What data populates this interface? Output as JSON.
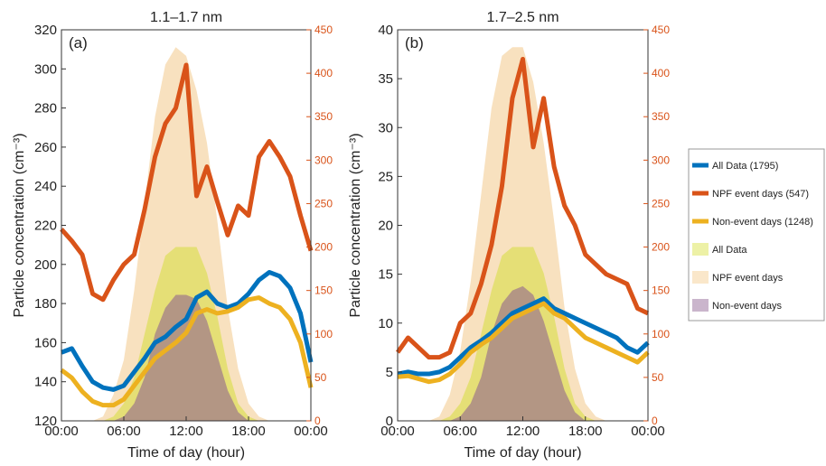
{
  "chart_data": [
    {
      "type": "line",
      "title": "1.1–1.7 nm",
      "annotation": "(a)",
      "xlabel": "Time of day (hour)",
      "ylabel": "Particle concentration (cm⁻³)",
      "x": [
        0,
        1,
        2,
        3,
        4,
        5,
        6,
        7,
        8,
        9,
        10,
        11,
        12,
        13,
        14,
        15,
        16,
        17,
        18,
        19,
        20,
        21,
        22,
        23,
        24
      ],
      "xlim": [
        0,
        24
      ],
      "xticks": [
        {
          "value": 0,
          "label": "00:00"
        },
        {
          "value": 6,
          "label": "06:00"
        },
        {
          "value": 12,
          "label": "12:00"
        },
        {
          "value": 18,
          "label": "18:00"
        },
        {
          "value": 24,
          "label": "00:00"
        }
      ],
      "ylim": [
        120,
        320
      ],
      "yticks": [
        120,
        140,
        160,
        180,
        200,
        220,
        240,
        260,
        280,
        300,
        320
      ],
      "y2lim": [
        0,
        450
      ],
      "y2ticks": [
        0,
        50,
        100,
        150,
        200,
        250,
        300,
        350,
        400,
        450
      ],
      "series": [
        {
          "name": "NPF event days",
          "type": "area",
          "axis": "y2",
          "color": "#f3c98a",
          "values": [
            0,
            0,
            0,
            0,
            5,
            30,
            70,
            150,
            250,
            350,
            410,
            430,
            420,
            380,
            320,
            230,
            130,
            60,
            20,
            5,
            0,
            0,
            0,
            0,
            0
          ]
        },
        {
          "name": "All Data",
          "type": "area",
          "axis": "y2",
          "color": "#d6df3a",
          "values": [
            0,
            0,
            0,
            0,
            0,
            5,
            20,
            50,
            100,
            150,
            190,
            200,
            200,
            200,
            170,
            120,
            60,
            20,
            5,
            0,
            0,
            0,
            0,
            0,
            0
          ]
        },
        {
          "name": "Non-event days",
          "type": "area",
          "axis": "y2",
          "color": "#8a5a8f",
          "values": [
            0,
            0,
            0,
            0,
            0,
            0,
            5,
            20,
            50,
            100,
            130,
            145,
            145,
            140,
            115,
            75,
            35,
            10,
            0,
            0,
            0,
            0,
            0,
            0,
            0
          ]
        },
        {
          "name": "All Data (1795)",
          "type": "line",
          "color": "#0072bd",
          "values": [
            155,
            157,
            148,
            140,
            137,
            136,
            138,
            145,
            152,
            160,
            163,
            168,
            172,
            183,
            186,
            180,
            178,
            180,
            185,
            192,
            196,
            194,
            188,
            175,
            150
          ]
        },
        {
          "name": "NPF event days (547)",
          "type": "line",
          "color": "#d95319",
          "values": [
            218,
            212,
            205,
            185,
            182,
            192,
            200,
            205,
            228,
            255,
            272,
            280,
            302,
            235,
            250,
            232,
            215,
            230,
            225,
            255,
            263,
            255,
            245,
            225,
            207
          ]
        },
        {
          "name": "Non-event days (1248)",
          "type": "line",
          "color": "#edb120",
          "values": [
            146,
            142,
            135,
            130,
            128,
            128,
            131,
            138,
            145,
            152,
            156,
            160,
            165,
            175,
            177,
            175,
            176,
            178,
            182,
            183,
            180,
            178,
            172,
            160,
            137
          ]
        }
      ]
    },
    {
      "type": "line",
      "title": "1.7–2.5 nm",
      "annotation": "(b)",
      "xlabel": "Time of day (hour)",
      "ylabel": "Particle concentration (cm⁻³)",
      "legend": "right",
      "x": [
        0,
        1,
        2,
        3,
        4,
        5,
        6,
        7,
        8,
        9,
        10,
        11,
        12,
        13,
        14,
        15,
        16,
        17,
        18,
        19,
        20,
        21,
        22,
        23,
        24
      ],
      "xlim": [
        0,
        24
      ],
      "xticks": [
        {
          "value": 0,
          "label": "00:00"
        },
        {
          "value": 6,
          "label": "06:00"
        },
        {
          "value": 12,
          "label": "12:00"
        },
        {
          "value": 18,
          "label": "18:00"
        },
        {
          "value": 24,
          "label": "00:00"
        }
      ],
      "ylim": [
        0,
        40
      ],
      "yticks": [
        0,
        5,
        10,
        15,
        20,
        25,
        30,
        35,
        40
      ],
      "y2lim": [
        0,
        450
      ],
      "y2ticks": [
        0,
        50,
        100,
        150,
        200,
        250,
        300,
        350,
        400,
        450
      ],
      "series": [
        {
          "name": "NPF event days",
          "type": "area",
          "axis": "y2",
          "color": "#f3c98a",
          "values": [
            0,
            0,
            0,
            0,
            5,
            30,
            80,
            160,
            260,
            360,
            420,
            430,
            430,
            390,
            320,
            230,
            130,
            60,
            20,
            5,
            0,
            0,
            0,
            0,
            0
          ]
        },
        {
          "name": "All Data",
          "type": "area",
          "axis": "y2",
          "color": "#d6df3a",
          "values": [
            0,
            0,
            0,
            0,
            0,
            5,
            20,
            50,
            100,
            150,
            190,
            200,
            200,
            200,
            170,
            120,
            60,
            20,
            5,
            0,
            0,
            0,
            0,
            0,
            0
          ]
        },
        {
          "name": "Non-event days",
          "type": "area",
          "axis": "y2",
          "color": "#8a5a8f",
          "values": [
            0,
            0,
            0,
            0,
            0,
            0,
            5,
            20,
            50,
            100,
            135,
            150,
            155,
            145,
            115,
            75,
            35,
            10,
            0,
            0,
            0,
            0,
            0,
            0,
            0
          ]
        },
        {
          "name": "All Data (1795)",
          "type": "line",
          "color": "#0072bd",
          "values": [
            4.8,
            5,
            4.8,
            4.8,
            5,
            5.5,
            6.5,
            7.5,
            8.2,
            9,
            10,
            11,
            11.5,
            12,
            12.5,
            11.5,
            11,
            10.5,
            10,
            9.5,
            9,
            8.5,
            7.5,
            7,
            8
          ]
        },
        {
          "name": "NPF event days (547)",
          "type": "line",
          "color": "#d95319",
          "values": [
            7,
            8.5,
            7.5,
            6.5,
            6.5,
            7,
            10,
            11,
            14,
            18,
            24,
            33,
            37,
            28,
            33,
            26,
            22,
            20,
            17,
            16,
            15,
            14.5,
            14,
            11.5,
            11
          ]
        },
        {
          "name": "Non-event days (1248)",
          "type": "line",
          "color": "#edb120",
          "values": [
            4.5,
            4.6,
            4.3,
            4,
            4.2,
            4.8,
            5.8,
            7,
            7.8,
            8.5,
            9.5,
            10.5,
            11,
            11.5,
            12,
            11,
            10.5,
            9.5,
            8.5,
            8,
            7.5,
            7,
            6.5,
            6,
            7
          ]
        }
      ]
    }
  ]
}
